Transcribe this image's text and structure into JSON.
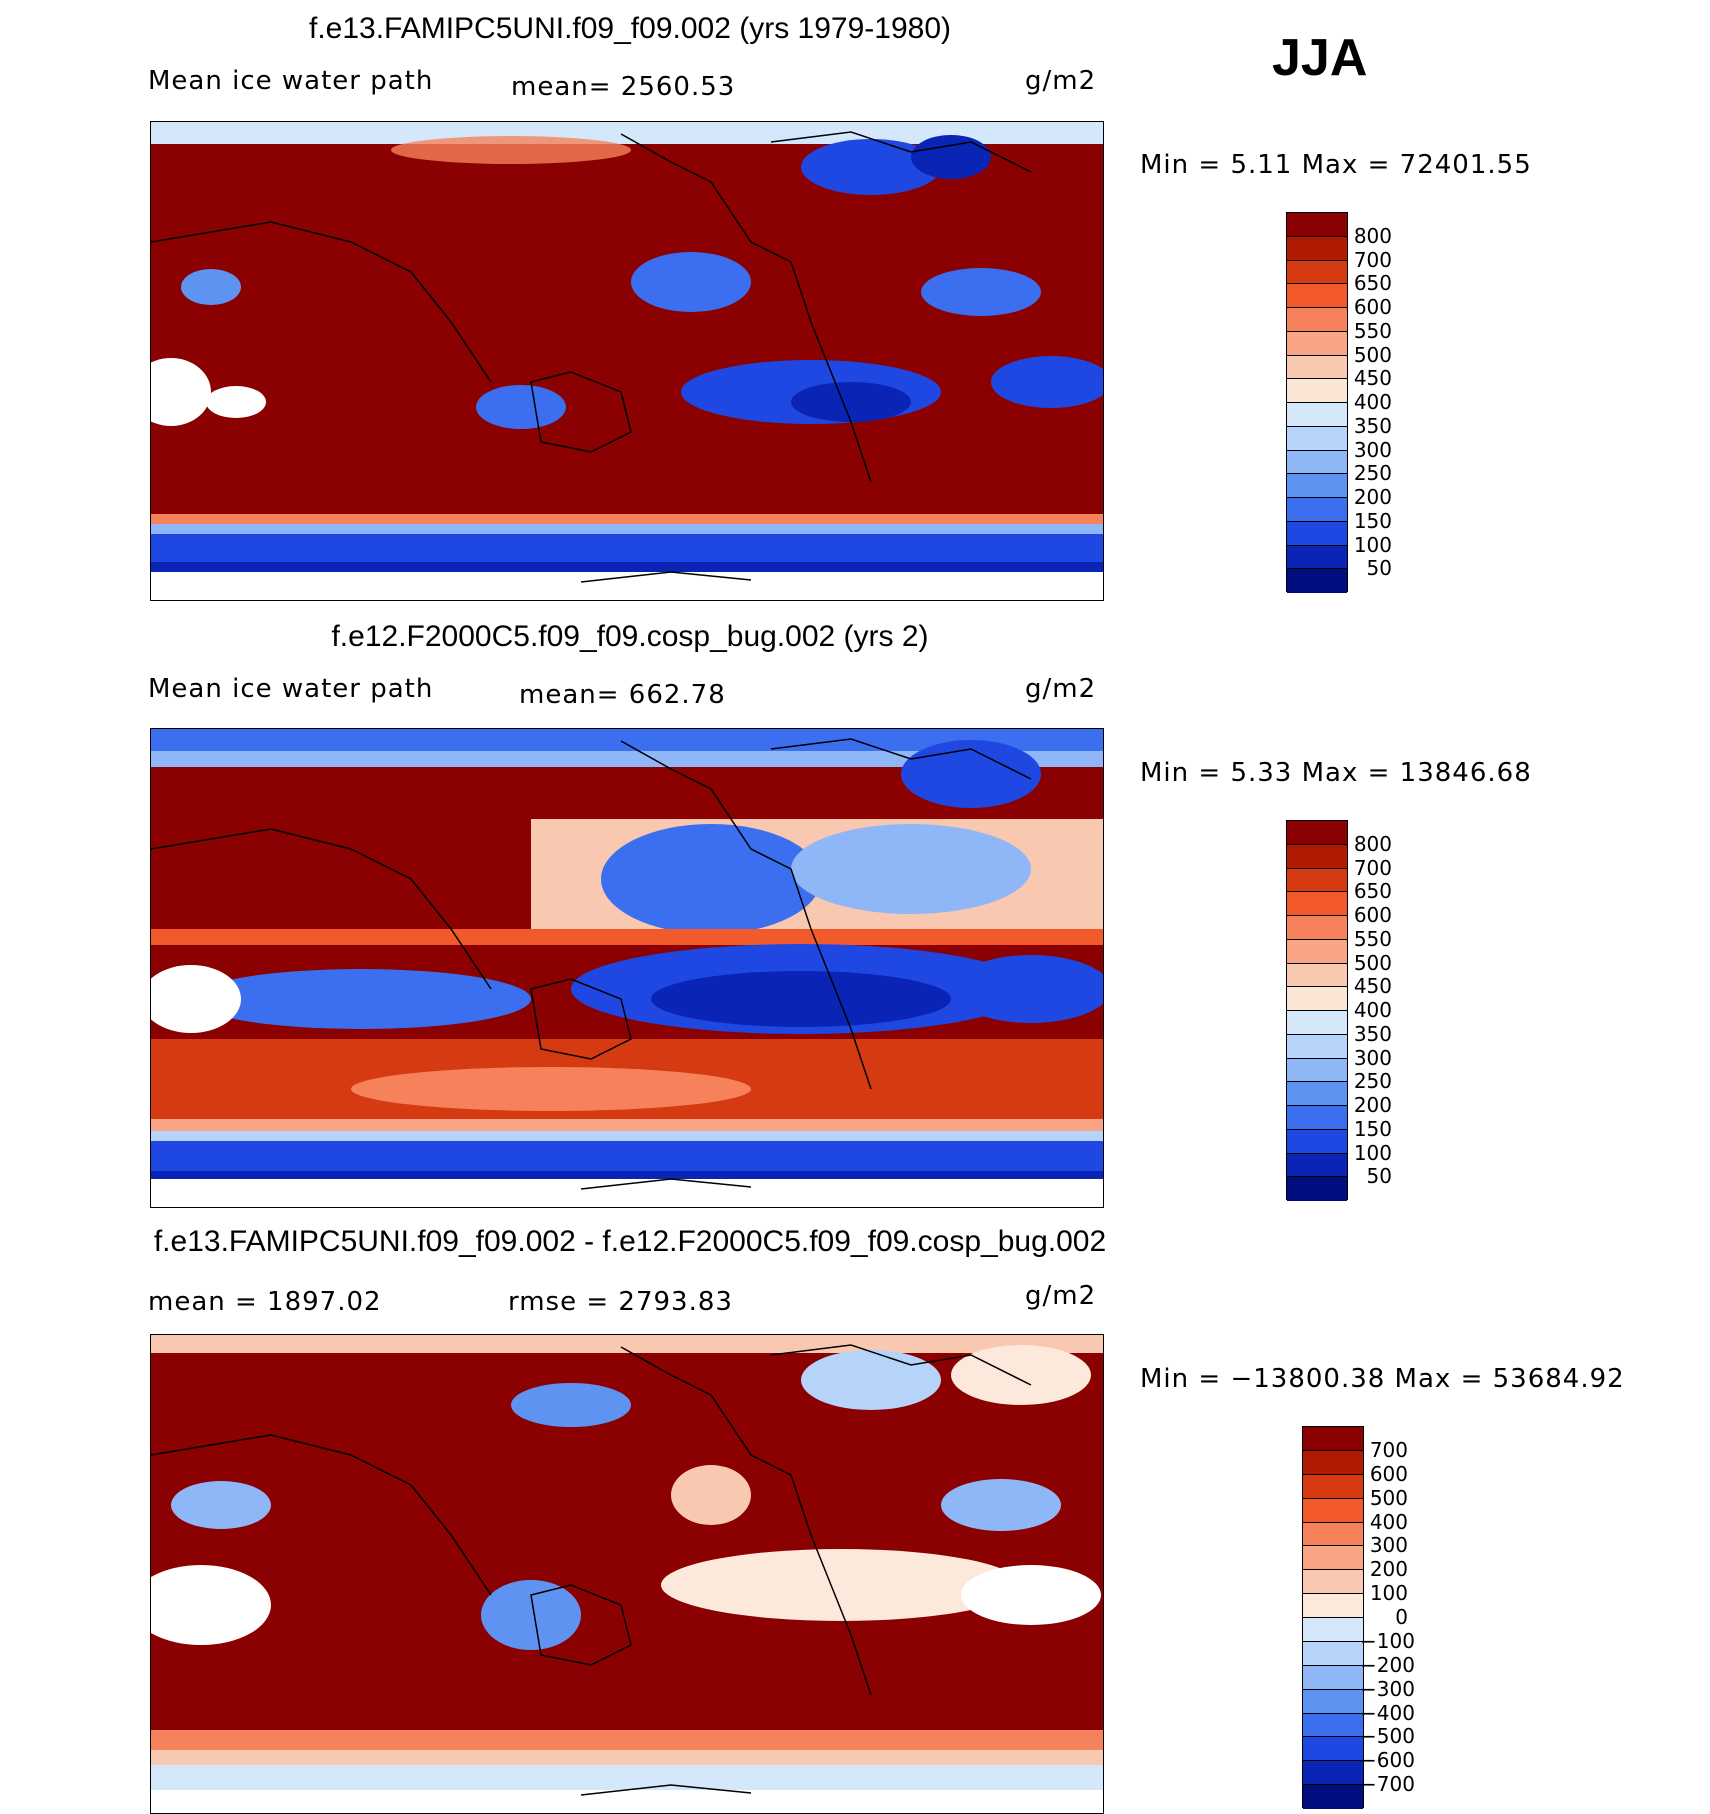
{
  "season": "JJA",
  "panels": [
    {
      "title": "f.e13.FAMIPC5UNI.f09_f09.002 (yrs 1979-1980)",
      "left_label": "Mean ice water path",
      "center_label": "mean= 2560.53",
      "units": "g/m2",
      "minmax": "Min =    5.11  Max  =  72401.55"
    },
    {
      "title": "f.e12.F2000C5.f09_f09.cosp_bug.002 (yrs 2)",
      "left_label": "Mean ice water path",
      "center_label": "mean= 662.78",
      "units": "g/m2",
      "minmax": "Min =    5.33  Max  =  13846.68"
    },
    {
      "title": "f.e13.FAMIPC5UNI.f09_f09.002 - f.e12.F2000C5.f09_f09.cosp_bug.002",
      "left_label": "mean  =  1897.02",
      "center_label": "rmse  =  2793.83",
      "units": "g/m2",
      "minmax": "Min = −13800.38  Max  =  53684.92"
    }
  ],
  "chart_data": [
    {
      "type": "heatmap",
      "title": "f.e13.FAMIPC5UNI.f09_f09.002 (yrs 1979-1980)",
      "variable": "Mean ice water path",
      "units": "g/m2",
      "mean": 2560.53,
      "min": 5.11,
      "max": 72401.55,
      "colorbar_levels": [
        "800",
        "700",
        "650",
        "600",
        "550",
        "500",
        "450",
        "400",
        "350",
        "300",
        "250",
        "200",
        "150",
        "100",
        "50"
      ],
      "colorbar_colors": [
        "#8b0000",
        "#b01a00",
        "#d63a12",
        "#f25a2c",
        "#f5825a",
        "#f7a585",
        "#f9c8b0",
        "#fbe6d6",
        "#d5e8fb",
        "#b6d3fa",
        "#8fb6f7",
        "#5f93f2",
        "#3b6ff0",
        "#1f48e2",
        "#0a25b5",
        "#000e80"
      ]
    },
    {
      "type": "heatmap",
      "title": "f.e12.F2000C5.f09_f09.cosp_bug.002 (yrs 2)",
      "variable": "Mean ice water path",
      "units": "g/m2",
      "mean": 662.78,
      "min": 5.33,
      "max": 13846.68,
      "colorbar_levels": [
        "800",
        "700",
        "650",
        "600",
        "550",
        "500",
        "450",
        "400",
        "350",
        "300",
        "250",
        "200",
        "150",
        "100",
        "50"
      ],
      "colorbar_colors": [
        "#8b0000",
        "#b01a00",
        "#d63a12",
        "#f25a2c",
        "#f5825a",
        "#f7a585",
        "#f9c8b0",
        "#fbe6d6",
        "#d5e8fb",
        "#b6d3fa",
        "#8fb6f7",
        "#5f93f2",
        "#3b6ff0",
        "#1f48e2",
        "#0a25b5",
        "#000e80"
      ]
    },
    {
      "type": "heatmap",
      "title": "f.e13.FAMIPC5UNI.f09_f09.002 - f.e12.F2000C5.f09_f09.cosp_bug.002",
      "units": "g/m2",
      "mean": 1897.02,
      "rmse": 2793.83,
      "min": -13800.38,
      "max": 53684.92,
      "colorbar_levels": [
        "700",
        "600",
        "500",
        "400",
        "300",
        "200",
        "100",
        "0",
        "−100",
        "−200",
        "−300",
        "−400",
        "−500",
        "−600",
        "−700"
      ],
      "colorbar_colors": [
        "#8b0000",
        "#b01a00",
        "#d63a12",
        "#f25a2c",
        "#f5825a",
        "#f7a585",
        "#f9c8b0",
        "#fde8dc",
        "#d5e8fb",
        "#b6d3fa",
        "#8fb6f7",
        "#5f93f2",
        "#3b6ff0",
        "#1f48e2",
        "#0a25b5",
        "#000e80"
      ]
    }
  ]
}
